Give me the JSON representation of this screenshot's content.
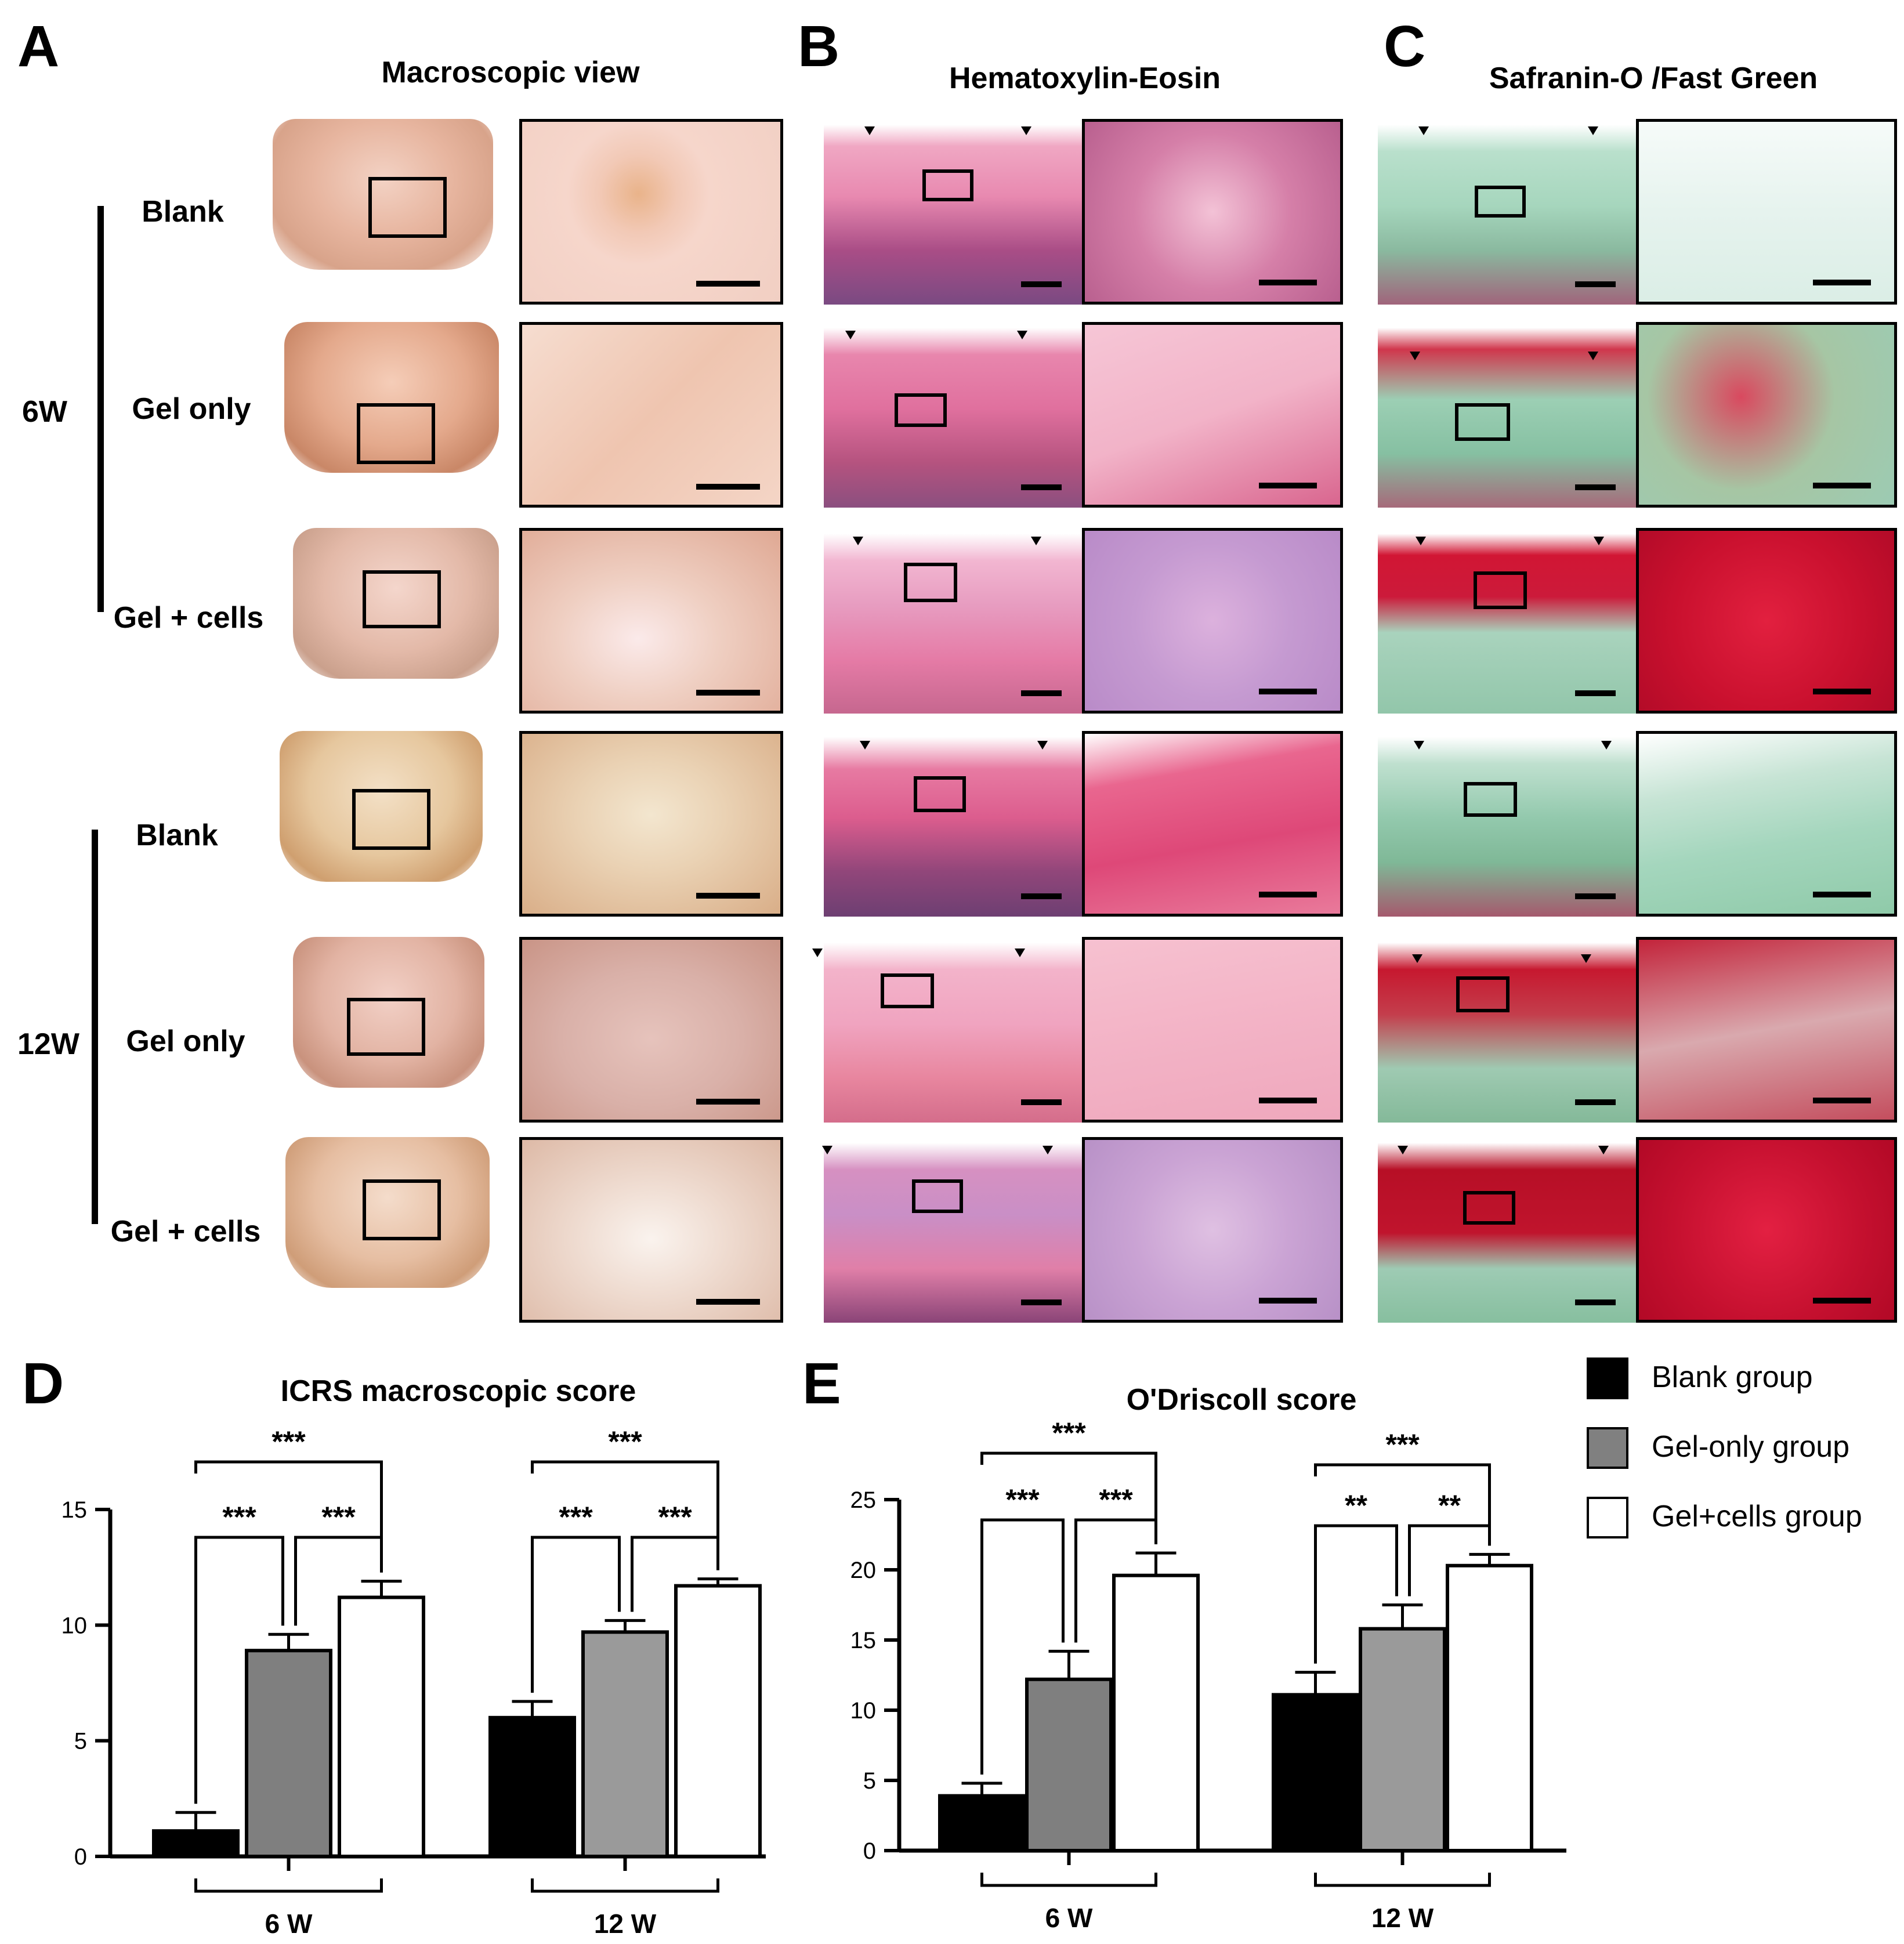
{
  "panels": {
    "A": {
      "letter": "A",
      "title": "Macroscopic view"
    },
    "B": {
      "letter": "B",
      "title": "Hematoxylin-Eosin"
    },
    "C": {
      "letter": "C",
      "title": "Safranin-O /Fast Green"
    },
    "D": {
      "letter": "D"
    },
    "E": {
      "letter": "E"
    }
  },
  "time_groups": [
    {
      "label": "6W",
      "rows": [
        "Blank",
        "Gel only",
        "Gel + cells"
      ]
    },
    {
      "label": "12W",
      "rows": [
        "Blank",
        "Gel only",
        "Gel + cells"
      ]
    }
  ],
  "colors": {
    "blank": "#000000",
    "gel_only": "#808080",
    "gel_cells": "#ffffff"
  },
  "legend": [
    {
      "label": "Blank group",
      "color": "#000000"
    },
    {
      "label": "Gel-only group",
      "color": "#808080"
    },
    {
      "label": "Gel+cells group",
      "color": "#ffffff"
    }
  ],
  "chart_data": [
    {
      "id": "D",
      "type": "bar",
      "title": "ICRS macroscopic score",
      "categories": [
        "6 W",
        "12 W"
      ],
      "ylim": [
        0,
        15
      ],
      "yticks": [
        0,
        5,
        10,
        15
      ],
      "series": [
        {
          "name": "Blank group",
          "values": [
            1.1,
            6.0
          ],
          "errors": [
            0.8,
            0.7
          ]
        },
        {
          "name": "Gel-only group",
          "values": [
            8.9,
            9.7
          ],
          "errors": [
            0.7,
            0.5
          ]
        },
        {
          "name": "Gel+cells group",
          "values": [
            11.2,
            11.7
          ],
          "errors": [
            0.7,
            0.3
          ]
        }
      ],
      "significance": [
        {
          "group": 0,
          "from": 0,
          "to": 2,
          "label": "***"
        },
        {
          "group": 0,
          "from": 0,
          "to": 1,
          "label": "***"
        },
        {
          "group": 0,
          "from": 1,
          "to": 2,
          "label": "***"
        },
        {
          "group": 1,
          "from": 0,
          "to": 2,
          "label": "***"
        },
        {
          "group": 1,
          "from": 0,
          "to": 1,
          "label": "***"
        },
        {
          "group": 1,
          "from": 1,
          "to": 2,
          "label": "***"
        }
      ]
    },
    {
      "id": "E",
      "type": "bar",
      "title": "O'Driscoll score",
      "categories": [
        "6 W",
        "12 W"
      ],
      "ylim": [
        0,
        25
      ],
      "yticks": [
        0,
        5,
        10,
        15,
        20,
        25
      ],
      "series": [
        {
          "name": "Blank group",
          "values": [
            3.9,
            11.1
          ],
          "errors": [
            0.9,
            1.6
          ]
        },
        {
          "name": "Gel-only group",
          "values": [
            12.2,
            15.8
          ],
          "errors": [
            2.0,
            1.7
          ]
        },
        {
          "name": "Gel+cells group",
          "values": [
            19.6,
            20.3
          ],
          "errors": [
            1.6,
            0.8
          ]
        }
      ],
      "significance": [
        {
          "group": 0,
          "from": 0,
          "to": 2,
          "label": "***"
        },
        {
          "group": 0,
          "from": 0,
          "to": 1,
          "label": "***"
        },
        {
          "group": 0,
          "from": 1,
          "to": 2,
          "label": "***"
        },
        {
          "group": 1,
          "from": 0,
          "to": 2,
          "label": "***"
        },
        {
          "group": 1,
          "from": 0,
          "to": 1,
          "label": "**"
        },
        {
          "group": 1,
          "from": 1,
          "to": 2,
          "label": "**"
        }
      ]
    }
  ]
}
